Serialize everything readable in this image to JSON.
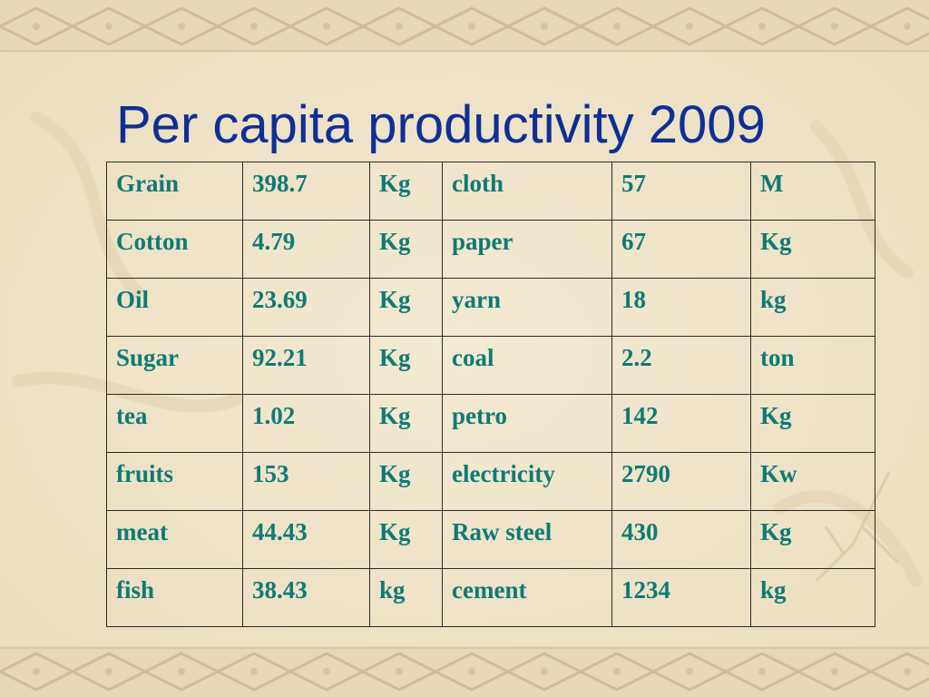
{
  "slide": {
    "title": "Per capita productivity 2009"
  },
  "table": {
    "rows": [
      [
        "Grain",
        "398.7",
        "Kg",
        "cloth",
        "57",
        "M"
      ],
      [
        "Cotton",
        "4.79",
        "Kg",
        "paper",
        "67",
        "Kg"
      ],
      [
        "Oil",
        "23.69",
        "Kg",
        "yarn",
        "18",
        "kg"
      ],
      [
        "Sugar",
        "92.21",
        "Kg",
        "coal",
        "2.2",
        "ton"
      ],
      [
        "tea",
        "1.02",
        "Kg",
        "petro",
        "142",
        "Kg"
      ],
      [
        "fruits",
        "153",
        "Kg",
        "electricity",
        "2790",
        "Kw"
      ],
      [
        "meat",
        "44.43",
        "Kg",
        "Raw steel",
        "430",
        "Kg"
      ],
      [
        "fish",
        "38.43",
        "kg",
        "cement",
        "1234",
        "kg"
      ]
    ]
  },
  "colors": {
    "background": "#f1e6cd",
    "title": "#0f2f96",
    "cell_text": "#0f7a76",
    "border_pattern": "#cdbd9a"
  }
}
